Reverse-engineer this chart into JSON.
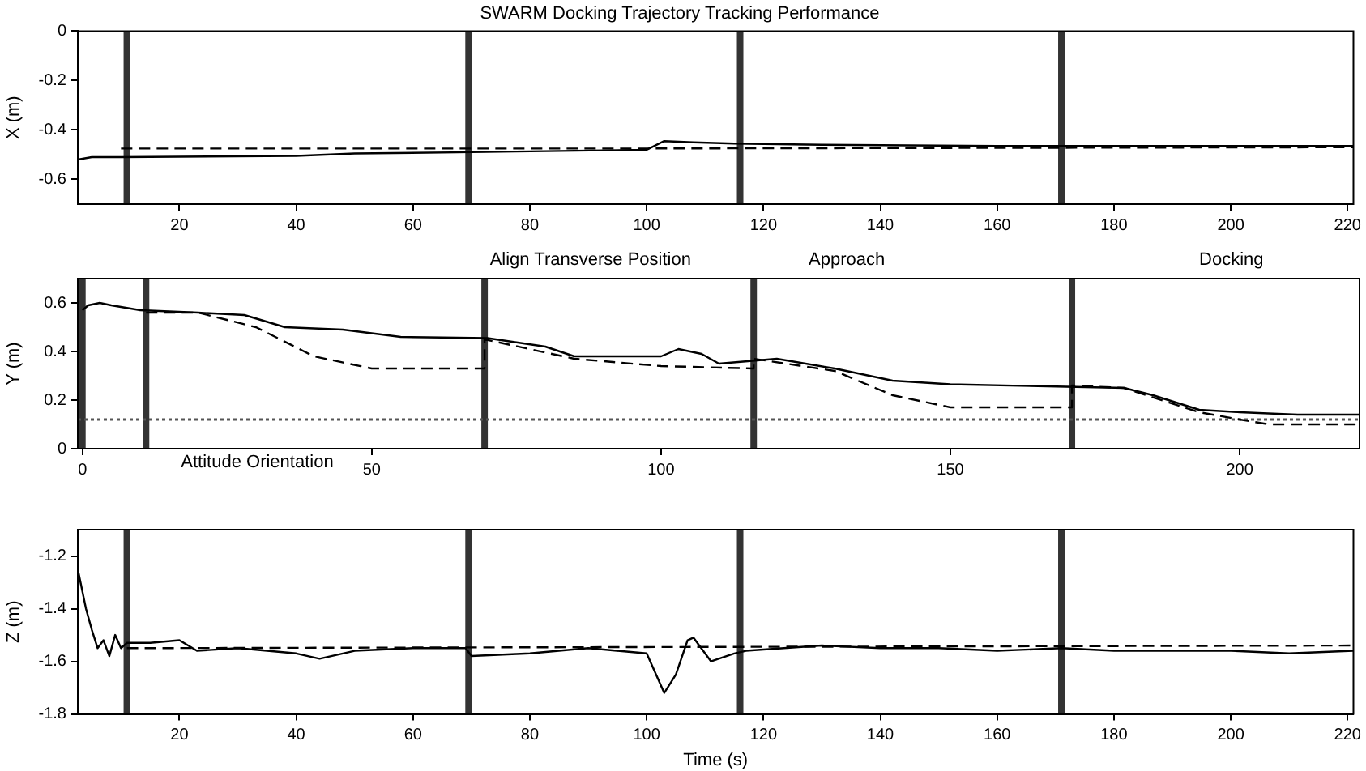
{
  "chart_data": [
    {
      "type": "line",
      "title": "SWARM Docking Trajectory Tracking Performance",
      "ylabel": "X (m)",
      "xlim": [
        2.6,
        221
      ],
      "ylim": [
        -0.7,
        0
      ],
      "xticks": [
        20,
        40,
        60,
        80,
        100,
        120,
        140,
        160,
        180,
        200,
        220
      ],
      "yticks": [
        0,
        -0.2,
        -0.4,
        -0.6
      ],
      "grid": false,
      "legend": false,
      "marker": "none",
      "series": [
        {
          "color": "#000000",
          "line_style": "solid",
          "x": [
            2.6,
            5,
            10,
            40,
            50,
            70,
            100,
            103,
            108,
            115,
            130,
            160,
            221
          ],
          "values": [
            -0.52,
            -0.51,
            -0.51,
            -0.505,
            -0.495,
            -0.49,
            -0.48,
            -0.445,
            -0.45,
            -0.455,
            -0.46,
            -0.465,
            -0.465
          ]
        },
        {
          "color": "#000000",
          "line_style": "dashed",
          "x": [
            10,
            100,
            221
          ],
          "values": [
            -0.475,
            -0.475,
            -0.47
          ]
        }
      ],
      "ref_lines": [
        {
          "axis": "x",
          "value": 11,
          "color": "#333333"
        },
        {
          "axis": "x",
          "value": 69.5,
          "color": "#333333"
        },
        {
          "axis": "x",
          "value": 116,
          "color": "#333333"
        },
        {
          "axis": "x",
          "value": 171,
          "color": "#333333"
        }
      ]
    },
    {
      "type": "line",
      "ylabel": "Y (m)",
      "xlim": [
        -0.8,
        220.7
      ],
      "ylim": [
        0,
        0.7
      ],
      "xticks": [
        0,
        50,
        100,
        150,
        200
      ],
      "yticks": [
        0,
        0.2,
        0.4,
        0.6
      ],
      "grid": false,
      "legend": false,
      "marker": "none",
      "annotations": [
        "Attitude Orientation",
        "Align Transverse Position",
        "Approach",
        "Docking"
      ],
      "series": [
        {
          "color": "#000000",
          "line_style": "solid",
          "x": [
            0,
            1,
            3,
            5,
            10,
            20,
            28,
            35,
            45,
            55,
            70,
            80,
            85,
            100,
            103,
            107,
            110,
            115,
            120,
            130,
            140,
            150,
            170,
            180,
            185,
            193,
            200,
            210,
            220.7
          ],
          "values": [
            0.57,
            0.59,
            0.6,
            0.59,
            0.57,
            0.56,
            0.55,
            0.5,
            0.49,
            0.46,
            0.455,
            0.42,
            0.38,
            0.38,
            0.41,
            0.39,
            0.35,
            0.36,
            0.37,
            0.33,
            0.28,
            0.265,
            0.255,
            0.25,
            0.22,
            0.16,
            0.15,
            0.14,
            0.14
          ]
        },
        {
          "color": "#000000",
          "line_style": "dashed",
          "x": [
            11,
            20,
            30,
            40,
            50,
            69.5,
            69.5,
            85,
            100,
            116,
            116,
            130,
            140,
            150,
            171,
            171,
            180,
            193,
            200,
            205,
            220.7
          ],
          "values": [
            0.56,
            0.56,
            0.5,
            0.38,
            0.33,
            0.33,
            0.45,
            0.37,
            0.34,
            0.33,
            0.37,
            0.32,
            0.22,
            0.17,
            0.17,
            0.26,
            0.25,
            0.15,
            0.12,
            0.1,
            0.1
          ]
        }
      ],
      "ref_lines": [
        {
          "axis": "x",
          "value": 0,
          "color": "#333333"
        },
        {
          "axis": "x",
          "value": 11,
          "color": "#333333"
        },
        {
          "axis": "x",
          "value": 69.5,
          "color": "#333333"
        },
        {
          "axis": "x",
          "value": 116,
          "color": "#333333"
        },
        {
          "axis": "x",
          "value": 171,
          "color": "#333333"
        },
        {
          "axis": "y",
          "value": 0.12,
          "color": "#555555",
          "line_style": "dotted"
        }
      ]
    },
    {
      "type": "line",
      "xlabel": "Time (s)",
      "ylabel": "Z (m)",
      "xlim": [
        2.6,
        221
      ],
      "ylim": [
        -1.8,
        -1.1
      ],
      "xticks": [
        20,
        40,
        60,
        80,
        100,
        120,
        140,
        160,
        180,
        200,
        220
      ],
      "yticks": [
        -1.2,
        -1.4,
        -1.6,
        -1.8
      ],
      "grid": false,
      "legend": false,
      "marker": "none",
      "series": [
        {
          "color": "#000000",
          "line_style": "solid",
          "x": [
            2.6,
            4,
            5,
            6,
            7,
            8,
            9,
            10,
            11,
            15,
            20,
            23,
            30,
            40,
            44,
            50,
            60,
            69,
            70,
            80,
            90,
            100,
            103,
            105,
            107,
            108,
            111,
            115,
            117,
            130,
            140,
            150,
            160,
            171,
            180,
            200,
            210,
            221
          ],
          "values": [
            -1.25,
            -1.4,
            -1.48,
            -1.55,
            -1.52,
            -1.58,
            -1.5,
            -1.55,
            -1.53,
            -1.53,
            -1.52,
            -1.56,
            -1.55,
            -1.57,
            -1.59,
            -1.56,
            -1.55,
            -1.55,
            -1.58,
            -1.57,
            -1.55,
            -1.57,
            -1.72,
            -1.65,
            -1.52,
            -1.51,
            -1.6,
            -1.57,
            -1.56,
            -1.54,
            -1.55,
            -1.55,
            -1.56,
            -1.55,
            -1.56,
            -1.56,
            -1.57,
            -1.56
          ]
        },
        {
          "color": "#000000",
          "line_style": "dashed",
          "x": [
            11,
            221
          ],
          "values": [
            -1.55,
            -1.54
          ]
        }
      ],
      "ref_lines": [
        {
          "axis": "x",
          "value": 11,
          "color": "#333333"
        },
        {
          "axis": "x",
          "value": 69.5,
          "color": "#333333"
        },
        {
          "axis": "x",
          "value": 116,
          "color": "#333333"
        },
        {
          "axis": "x",
          "value": 171,
          "color": "#333333"
        }
      ]
    }
  ]
}
